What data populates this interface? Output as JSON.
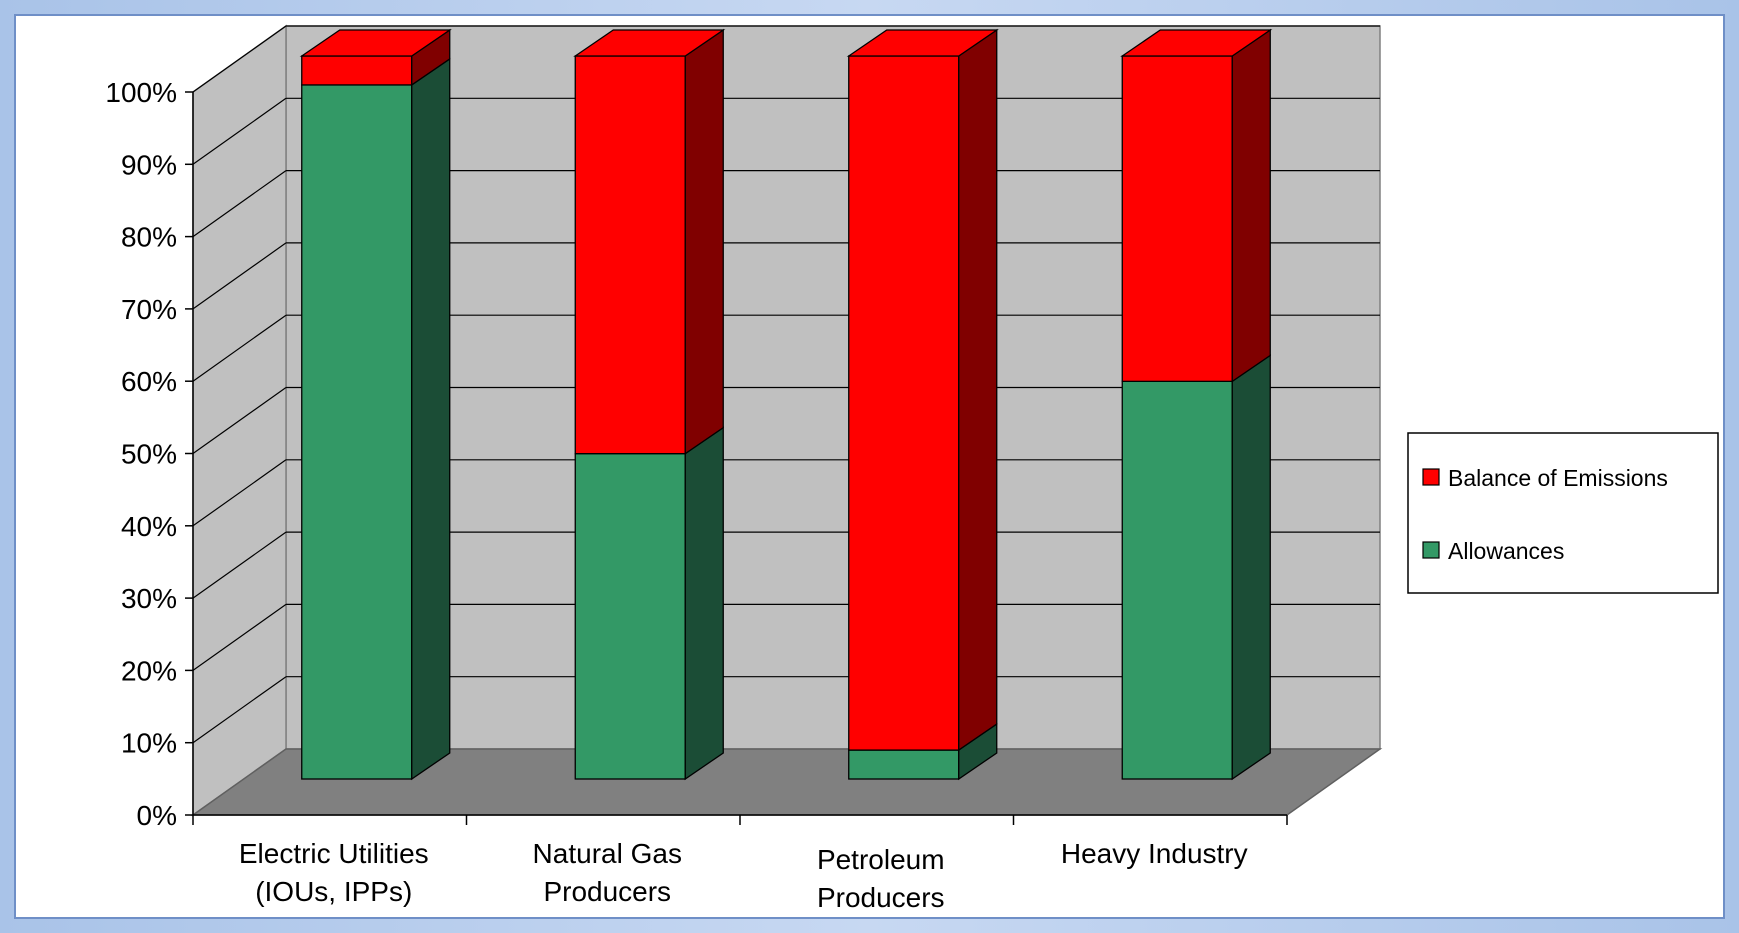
{
  "chart_data": {
    "type": "bar",
    "stacked": true,
    "three_d": true,
    "categories": [
      [
        "Electric Utilities",
        "(IOUs, IPPs)"
      ],
      [
        "Natural Gas",
        "Producers"
      ],
      [
        "Petroleum",
        "Producers"
      ],
      [
        "Heavy Industry"
      ]
    ],
    "series": [
      {
        "name": "Allowances",
        "values": [
          96,
          45,
          4,
          55
        ],
        "color": "#339966",
        "side_color": "#1b4d36"
      },
      {
        "name": "Balance of Emissions",
        "values": [
          4,
          55,
          96,
          45
        ],
        "color": "#ff0000",
        "side_color": "#800000"
      }
    ],
    "yticks": [
      "0%",
      "10%",
      "20%",
      "30%",
      "40%",
      "50%",
      "60%",
      "70%",
      "80%",
      "90%",
      "100%"
    ],
    "ylim": [
      0,
      100
    ],
    "grid": true,
    "legend": {
      "position": "right",
      "entries": [
        "Balance of Emissions",
        "Allowances"
      ]
    },
    "title": "",
    "xlabel": "",
    "ylabel": ""
  }
}
